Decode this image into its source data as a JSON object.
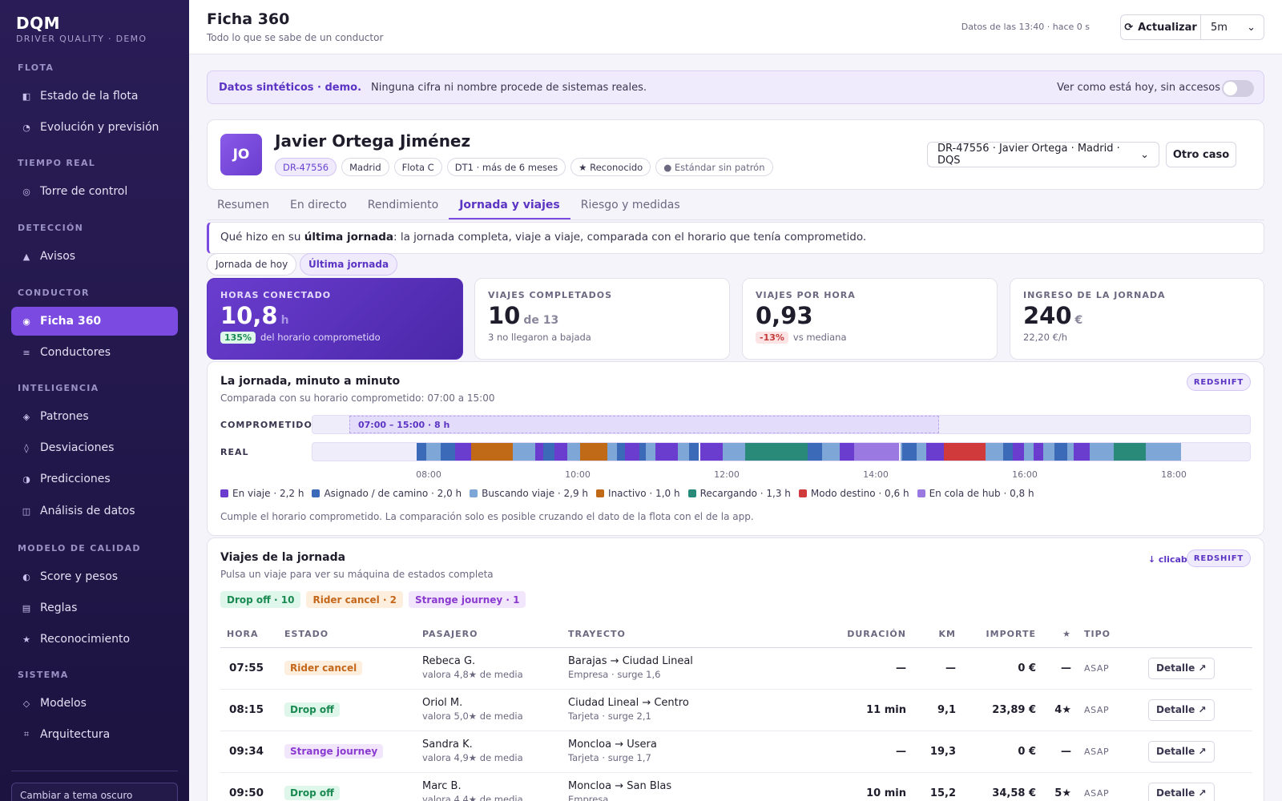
{
  "sidebar": {
    "brand": "DQM",
    "brand_sub": "DRIVER QUALITY · DEMO",
    "sections": [
      {
        "title": "FLOTA",
        "items": [
          {
            "label": "Estado de la flota",
            "icon": "fleet-icon",
            "glyph": "◧"
          },
          {
            "label": "Evolución y previsión",
            "icon": "pie-icon",
            "glyph": "◔"
          }
        ]
      },
      {
        "title": "TIEMPO REAL",
        "items": [
          {
            "label": "Torre de control",
            "icon": "target-icon",
            "glyph": "◎"
          }
        ]
      },
      {
        "title": "DETECCIÓN",
        "items": [
          {
            "label": "Avisos",
            "icon": "alert-icon",
            "glyph": "▲"
          }
        ]
      },
      {
        "title": "CONDUCTOR",
        "items": [
          {
            "label": "Ficha 360",
            "icon": "record-icon",
            "glyph": "◉",
            "active": true
          },
          {
            "label": "Conductores",
            "icon": "list-icon",
            "glyph": "≡"
          }
        ]
      },
      {
        "title": "INTELIGENCIA",
        "items": [
          {
            "label": "Patrones",
            "icon": "diamond-icon",
            "glyph": "◈"
          },
          {
            "label": "Desviaciones",
            "icon": "deviation-icon",
            "glyph": "◊"
          },
          {
            "label": "Predicciones",
            "icon": "half-circle-icon",
            "glyph": "◑"
          },
          {
            "label": "Análisis de datos",
            "icon": "columns-icon",
            "glyph": "◫"
          }
        ]
      },
      {
        "title": "MODELO DE CALIDAD",
        "items": [
          {
            "label": "Score y pesos",
            "icon": "score-icon",
            "glyph": "◐"
          },
          {
            "label": "Reglas",
            "icon": "rules-icon",
            "glyph": "▤"
          },
          {
            "label": "Reconocimiento",
            "icon": "star-icon",
            "glyph": "★"
          }
        ]
      },
      {
        "title": "SISTEMA",
        "items": [
          {
            "label": "Modelos",
            "icon": "model-icon",
            "glyph": "◇"
          },
          {
            "label": "Arquitectura",
            "icon": "grid-icon",
            "glyph": "⌗"
          }
        ]
      }
    ],
    "theme_button": "Cambiar a tema oscuro"
  },
  "header": {
    "title": "Ficha 360",
    "subtitle": "Todo lo que se sabe de un conductor",
    "stamp": "Datos de las 13:40 · hace 0 s",
    "refresh": "Actualizar",
    "refresh_icon": "⟳",
    "interval": "5m"
  },
  "banner": {
    "strong": "Datos sintéticos · demo.",
    "text": "Ninguna cifra ni nombre procede de sistemas reales.",
    "toggle_label": "Ver como está hoy, sin accesos"
  },
  "driver": {
    "initials": "JO",
    "name": "Javier Ortega Jiménez",
    "chips": [
      "DR-47556",
      "Madrid",
      "Flota C",
      "DT1 · más de 6 meses",
      "★ Reconocido",
      "● Estándar sin patrón"
    ],
    "select": "DR-47556 · Javier Ortega · Madrid · DQS",
    "other_case": "Otro caso"
  },
  "tabs": [
    "Resumen",
    "En directo",
    "Rendimiento",
    "Jornada y viajes",
    "Riesgo y medidas"
  ],
  "active_tab": 3,
  "context": {
    "pre": "Qué hizo en su ",
    "strong": "última jornada",
    "post": ": la jornada completa, viaje a viaje, comparada con el horario que tenía comprometido."
  },
  "segments": [
    "Jornada de hoy",
    "Última jornada"
  ],
  "kpis": [
    {
      "label": "HORAS CONECTADO",
      "value": "10,8",
      "unit": "h",
      "badge": "135%",
      "sub": "del horario comprometido"
    },
    {
      "label": "VIAJES COMPLETADOS",
      "value": "10",
      "unit": "de 13",
      "sub": "3 no llegaron a bajada"
    },
    {
      "label": "VIAJES POR HORA",
      "value": "0,93",
      "badge": "-13%",
      "sub": "vs mediana"
    },
    {
      "label": "INGRESO DE LA JORNADA",
      "value": "240",
      "unit": "€",
      "sub": "22,20 €/h"
    }
  ],
  "timeline": {
    "title": "La jornada, minuto a minuto",
    "subtitle": "Comparada con su horario comprometido: 07:00 a 15:00",
    "badge": "REDSHIFT",
    "lane_commit": "COMPROMETIDO",
    "lane_real": "REAL",
    "commit_label": "07:00 – 15:00 · 8 h",
    "ticks": [
      "08:00",
      "10:00",
      "12:00",
      "14:00",
      "16:00",
      "18:00"
    ],
    "legend": [
      {
        "label": "En viaje · 2,2 h",
        "color": "#6a3dcf"
      },
      {
        "label": "Asignado / de camino · 2,0 h",
        "color": "#3a6ab8"
      },
      {
        "label": "Buscando viaje · 2,9 h",
        "color": "#7ea6d6"
      },
      {
        "label": "Inactivo · 1,0 h",
        "color": "#c06a18"
      },
      {
        "label": "Recargando · 1,3 h",
        "color": "#2a8a7a"
      },
      {
        "label": "Modo destino · 0,6 h",
        "color": "#d03a3a"
      },
      {
        "label": "En cola de hub · 0,8 h",
        "color": "#9a7ae0"
      }
    ],
    "note": "Cumple el horario comprometido. La comparación solo es posible cruzando el dato de la flota con el de la app."
  },
  "trips": {
    "title": "Viajes de la jornada",
    "subtitle": "Pulsa un viaje para ver su máquina de estados completa",
    "clicable": "↓ clicable",
    "badge": "REDSHIFT",
    "filters": [
      {
        "label": "Drop off · 10",
        "cls": "st-drop"
      },
      {
        "label": "Rider cancel · 2",
        "cls": "st-cancel"
      },
      {
        "label": "Strange journey · 1",
        "cls": "st-strange"
      }
    ],
    "columns": [
      "HORA",
      "ESTADO",
      "PASAJERO",
      "TRAYECTO",
      "DURACIÓN",
      "KM",
      "IMPORTE",
      "★",
      "TIPO"
    ],
    "rows": [
      {
        "time": "07:55",
        "status": "Rider cancel",
        "cls": "st-cancel",
        "pax": "Rebeca G.",
        "pax_sub": "valora 4,8★ de media",
        "route": "Barajas → Ciudad Lineal",
        "route_sub": "Empresa · surge 1,6",
        "dur": "—",
        "km": "—",
        "amount": "0 €",
        "stars": "—",
        "type": "ASAP",
        "action": "Detalle ↗"
      },
      {
        "time": "08:15",
        "status": "Drop off",
        "cls": "st-drop",
        "pax": "Oriol M.",
        "pax_sub": "valora 5,0★ de media",
        "route": "Ciudad Lineal → Centro",
        "route_sub": "Tarjeta · surge 2,1",
        "dur": "11 min",
        "km": "9,1",
        "amount": "23,89 €",
        "stars": "4★",
        "type": "ASAP",
        "action": "Detalle ↗"
      },
      {
        "time": "09:34",
        "status": "Strange journey",
        "cls": "st-strange",
        "pax": "Sandra K.",
        "pax_sub": "valora 4,9★ de media",
        "route": "Moncloa → Usera",
        "route_sub": "Tarjeta · surge 1,7",
        "dur": "—",
        "km": "19,3",
        "amount": "0 €",
        "stars": "—",
        "type": "ASAP",
        "action": "Detalle ↗"
      },
      {
        "time": "09:50",
        "status": "Drop off",
        "cls": "st-drop",
        "pax": "Marc B.",
        "pax_sub": "valora 4,4★ de media",
        "route": "Moncloa → San Blas",
        "route_sub": "Empresa",
        "dur": "10 min",
        "km": "15,2",
        "amount": "34,58 €",
        "stars": "5★",
        "type": "ASAP",
        "action": "Detalle ↗"
      }
    ]
  },
  "colors": {
    "accent": "#7b4ae0",
    "sidebar": "#2a1d57"
  }
}
